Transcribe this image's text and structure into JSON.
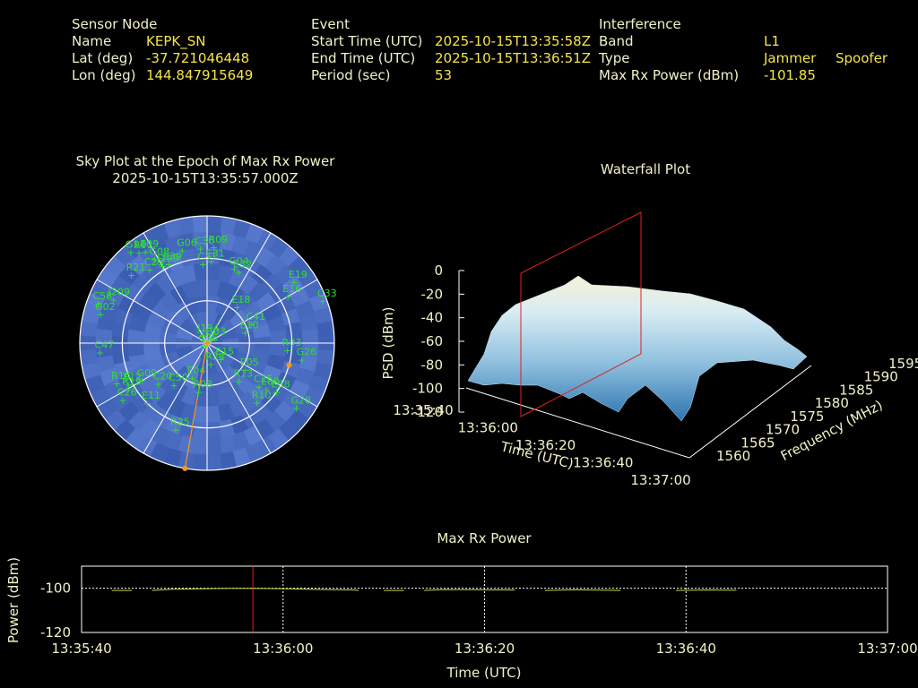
{
  "header": {
    "sensor": {
      "heading": "Sensor Node",
      "name_label": "Name",
      "name": "KEPK_SN",
      "lat_label": "Lat (deg)",
      "lat": "-37.721046448",
      "lon_label": "Lon (deg)",
      "lon": "144.847915649"
    },
    "event": {
      "heading": "Event",
      "start_label": "Start Time (UTC)",
      "start": "2025-10-15T13:35:58Z",
      "end_label": "End Time (UTC)",
      "end": "2025-10-15T13:36:51Z",
      "period_label": "Period (sec)",
      "period": "53"
    },
    "interference": {
      "heading": "Interference",
      "band_label": "Band",
      "band": "L1",
      "type_label": "Type",
      "type_values": [
        "Jammer",
        "Spoofer"
      ],
      "max_label": "Max Rx Power (dBm)",
      "max": "-101.85"
    }
  },
  "colors": {
    "text": "#f1f1c8",
    "value": "#f4e44a",
    "sky_bg": "#3f5fae",
    "sat": "#2fe02f",
    "trace": "#c8d23a",
    "marker": "#e02020",
    "orange": "#f39a1e"
  },
  "chart_data": [
    {
      "type": "scatter",
      "title": "Sky Plot at the Epoch of Max Rx Power",
      "subtitle": "2025-10-15T13:35:57.000Z",
      "satellites": [
        {
          "id": "E09",
          "az": 326,
          "el": 12
        },
        {
          "id": "R01",
          "az": 323,
          "el": 10
        },
        {
          "id": "G14",
          "az": 320,
          "el": 6
        },
        {
          "id": "R21",
          "az": 312,
          "el": 18
        },
        {
          "id": "G08",
          "az": 328,
          "el": 20
        },
        {
          "id": "C29",
          "az": 322,
          "el": 24
        },
        {
          "id": "J199",
          "az": 330,
          "el": 27
        },
        {
          "id": "E39",
          "az": 334,
          "el": 28
        },
        {
          "id": "G06",
          "az": 345,
          "el": 22
        },
        {
          "id": "C30",
          "az": 356,
          "el": 23
        },
        {
          "id": "R09",
          "az": 4,
          "el": 22
        },
        {
          "id": "C31",
          "az": 357,
          "el": 34
        },
        {
          "id": "E31",
          "az": 3,
          "el": 32
        },
        {
          "id": "E32",
          "az": 24,
          "el": 35
        },
        {
          "id": "G04",
          "az": 20,
          "el": 34
        },
        {
          "id": "E19",
          "az": 55,
          "el": 15
        },
        {
          "id": "E16",
          "az": 60,
          "el": 24
        },
        {
          "id": "C33",
          "az": 70,
          "el": 3
        },
        {
          "id": "J209",
          "az": 295,
          "el": 17
        },
        {
          "id": "C58",
          "az": 290,
          "el": 8
        },
        {
          "id": "G02",
          "az": 285,
          "el": 12
        },
        {
          "id": "E18",
          "az": 40,
          "el": 57
        },
        {
          "id": "C41",
          "az": 67,
          "el": 56
        },
        {
          "id": "E10",
          "az": 75,
          "el": 62
        },
        {
          "id": "R03",
          "az": 95,
          "el": 33
        },
        {
          "id": "G03",
          "az": 45,
          "el": 86
        },
        {
          "id": "J194",
          "az": 330,
          "el": 84
        },
        {
          "id": "C36",
          "az": 230,
          "el": 87
        },
        {
          "id": "G26",
          "az": 100,
          "el": 22
        },
        {
          "id": "E15",
          "az": 140,
          "el": 75
        },
        {
          "id": "E05",
          "az": 125,
          "el": 57
        },
        {
          "id": "R13",
          "az": 140,
          "el": 55
        },
        {
          "id": "C25",
          "az": 130,
          "el": 42
        },
        {
          "id": "E08",
          "az": 128,
          "el": 37
        },
        {
          "id": "E58",
          "az": 125,
          "el": 30
        },
        {
          "id": "R10",
          "az": 140,
          "el": 35
        },
        {
          "id": "G28",
          "az": 126,
          "el": 12
        },
        {
          "id": "C47",
          "az": 265,
          "el": 14
        },
        {
          "id": "R19",
          "az": 240,
          "el": 25
        },
        {
          "id": "R25",
          "az": 200,
          "el": 25
        },
        {
          "id": "G09",
          "az": 240,
          "el": 37
        },
        {
          "id": "C50",
          "az": 218,
          "el": 52
        },
        {
          "id": "E04",
          "az": 203,
          "el": 63
        },
        {
          "id": "R08",
          "az": 190,
          "el": 55
        },
        {
          "id": "R24",
          "az": 170,
          "el": 75
        },
        {
          "id": "C20",
          "az": 230,
          "el": 45
        },
        {
          "id": "E11",
          "az": 225,
          "el": 30
        },
        {
          "id": "E12",
          "az": 242,
          "el": 27
        },
        {
          "id": "C26",
          "az": 236,
          "el": 18
        },
        {
          "id": "R16",
          "az": 246,
          "el": 20
        }
      ],
      "max_point": {
        "az": 190,
        "el": 0
      },
      "sun_points": [
        {
          "az": 0,
          "el": 90
        },
        {
          "az": 105,
          "el": 30
        }
      ]
    },
    {
      "type": "area",
      "title": "Waterfall Plot",
      "xlabel": "Time (UTC)",
      "ylabel": "Frequency (MHz)",
      "zlabel": "PSD (dBm)",
      "time_ticks": [
        "13:35:40",
        "13:36:00",
        "13:36:20",
        "13:36:40",
        "13:37:00"
      ],
      "freq_ticks": [
        "1560",
        "1565",
        "1570",
        "1575",
        "1580",
        "1585",
        "1590",
        "1595"
      ],
      "psd_ticks": [
        "0",
        "-20",
        "-40",
        "-60",
        "-80",
        "-100",
        "-120"
      ],
      "psd_range": [
        -120,
        0
      ],
      "surface_peak_dbm": -15,
      "surface_floor_dbm": -110
    },
    {
      "type": "line",
      "title": "Max Rx Power",
      "xlabel": "Time (UTC)",
      "ylabel": "Power (dBm)",
      "x_ticks": [
        "13:35:40",
        "13:36:00",
        "13:36:20",
        "13:36:40",
        "13:37:00"
      ],
      "y_ticks": [
        "-100",
        "-120"
      ],
      "ylim": [
        -120,
        -90
      ],
      "xlim_sec": [
        0,
        80
      ],
      "marker_sec": 17,
      "segments": [
        [
          [
            3,
            -101.0
          ],
          [
            5,
            -101.0
          ]
        ],
        [
          [
            7,
            -101.0
          ],
          [
            9,
            -100.4
          ],
          [
            12,
            -100.2
          ],
          [
            15,
            -100.0
          ],
          [
            18,
            -100.1
          ],
          [
            21,
            -100.3
          ],
          [
            24,
            -100.6
          ],
          [
            27,
            -100.8
          ],
          [
            27.5,
            -101.0
          ]
        ],
        [
          [
            30,
            -101.0
          ],
          [
            32,
            -101.0
          ]
        ],
        [
          [
            34,
            -101.0
          ],
          [
            36,
            -100.6
          ],
          [
            40,
            -100.7
          ],
          [
            43,
            -100.8
          ]
        ],
        [
          [
            46,
            -101.0
          ],
          [
            49,
            -100.7
          ],
          [
            52,
            -100.9
          ],
          [
            53.5,
            -101.0
          ]
        ],
        [
          [
            59,
            -101.0
          ],
          [
            62,
            -100.8
          ],
          [
            65,
            -100.9
          ]
        ]
      ]
    }
  ]
}
